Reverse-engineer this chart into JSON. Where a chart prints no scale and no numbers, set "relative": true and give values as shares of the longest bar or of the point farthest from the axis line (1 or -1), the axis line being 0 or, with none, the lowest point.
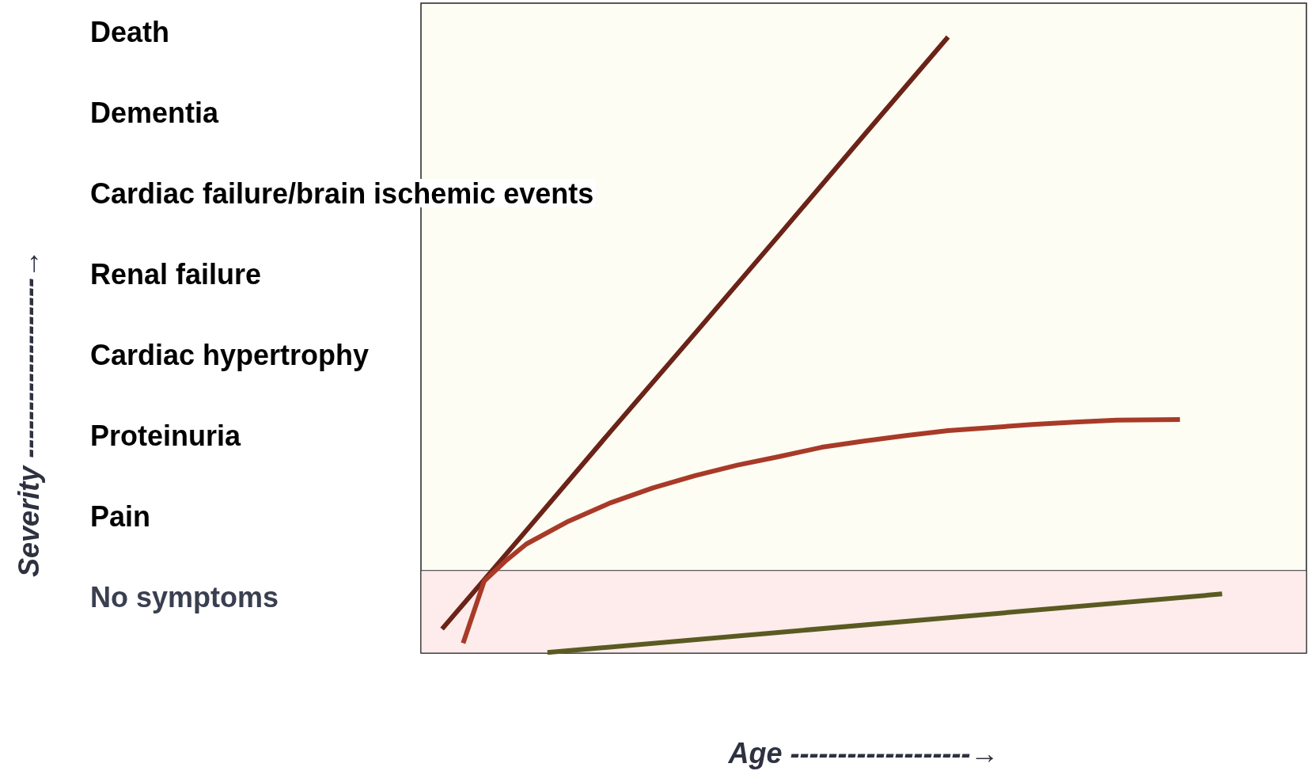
{
  "chart_data": {
    "type": "line",
    "xlabel": "Age -------------------→",
    "relative": true,
    "annotations": [
      "Severity -------------------→",
      "Death",
      "Dementia",
      "Cardiac failure/brain ischemic events",
      "Renal failure",
      "Cardiac hypertrophy",
      "Proteinuria",
      "Pain",
      "No symptoms"
    ],
    "categories": [
      null,
      null,
      null,
      null,
      null,
      null,
      null,
      null,
      null,
      null,
      null,
      null,
      null,
      null,
      null,
      null,
      null,
      null,
      null,
      null,
      null,
      null,
      null,
      null,
      null,
      null,
      null,
      null,
      null,
      null,
      null,
      null,
      null,
      null,
      null,
      null,
      null,
      null,
      null,
      null,
      null,
      null,
      null
    ],
    "series": [
      {
        "color": "#6b2318",
        "values": [
          null,
          0.039,
          null,
          null,
          null,
          0.199,
          null,
          null,
          null,
          0.36,
          null,
          null,
          null,
          0.519,
          null,
          null,
          null,
          0.679,
          null,
          null,
          null,
          0.84,
          null,
          null,
          null,
          1,
          null,
          null,
          null,
          null,
          null,
          null,
          null,
          null,
          null,
          null,
          null,
          null,
          null,
          null,
          null,
          null,
          null
        ]
      },
      {
        "color": "#a83a28",
        "values": [
          null,
          null,
          0.016,
          0.117,
          0.149,
          0.177,
          null,
          0.214,
          null,
          0.244,
          null,
          0.268,
          null,
          0.288,
          null,
          0.305,
          null,
          0.319,
          null,
          0.334,
          null,
          0.344,
          null,
          0.353,
          null,
          0.361,
          null,
          0.366,
          null,
          0.371,
          null,
          0.375,
          null,
          0.378,
          null,
          null,
          0.379,
          null,
          null,
          null,
          null,
          null,
          null
        ]
      },
      {
        "color": "#5a5a22",
        "values": [
          null,
          null,
          null,
          null,
          null,
          null,
          0.001,
          null,
          null,
          null,
          null,
          null,
          null,
          null,
          null,
          null,
          null,
          null,
          null,
          null,
          null,
          null,
          null,
          null,
          null,
          null,
          null,
          null,
          null,
          null,
          null,
          null,
          null,
          null,
          null,
          null,
          null,
          null,
          0.096,
          null,
          null,
          null,
          null
        ]
      }
    ],
    "bands": [
      {
        "axis": "y",
        "from": 0,
        "to": 0.134,
        "color": "#fdeceb"
      }
    ],
    "grid": false,
    "marker": "none",
    "line_style": "solid"
  }
}
